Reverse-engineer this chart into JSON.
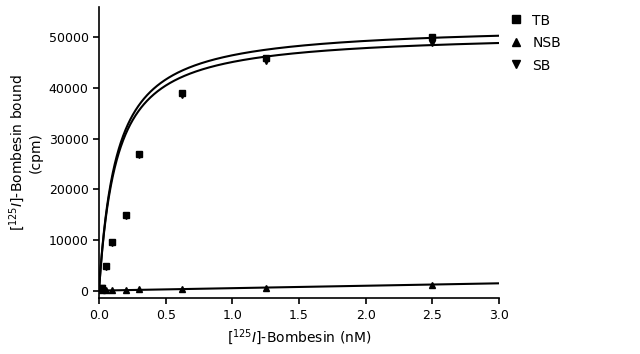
{
  "TB_x": [
    0.025,
    0.05,
    0.1,
    0.2,
    0.3,
    0.625,
    1.25,
    2.5
  ],
  "TB_y": [
    500,
    4800,
    9500,
    15000,
    27000,
    39000,
    46000,
    50000
  ],
  "NSB_x": [
    0.025,
    0.05,
    0.1,
    0.2,
    0.3,
    0.625,
    1.25,
    2.5
  ],
  "NSB_y": [
    50,
    100,
    150,
    200,
    250,
    400,
    600,
    1200
  ],
  "SB_x": [
    0.025,
    0.05,
    0.1,
    0.2,
    0.3,
    0.625,
    1.25,
    2.5
  ],
  "SB_y": [
    450,
    4700,
    9350,
    14800,
    26750,
    38600,
    45400,
    48800
  ],
  "TB_Bmax": 52500,
  "TB_Kd": 0.13,
  "NSB_slope": 480,
  "SB_Bmax": 51000,
  "SB_Kd": 0.13,
  "xlim": [
    0,
    3.0
  ],
  "ylim": [
    -1500,
    56000
  ],
  "xticks": [
    0.0,
    0.5,
    1.0,
    1.5,
    2.0,
    2.5,
    3.0
  ],
  "yticks": [
    0,
    10000,
    20000,
    30000,
    40000,
    50000
  ],
  "legend_labels": [
    "TB",
    "NSB",
    "SB"
  ],
  "line_color": "#000000",
  "marker_color": "#000000",
  "background_color": "#ffffff",
  "fig_width": 6.4,
  "fig_height": 3.54,
  "dpi": 100
}
